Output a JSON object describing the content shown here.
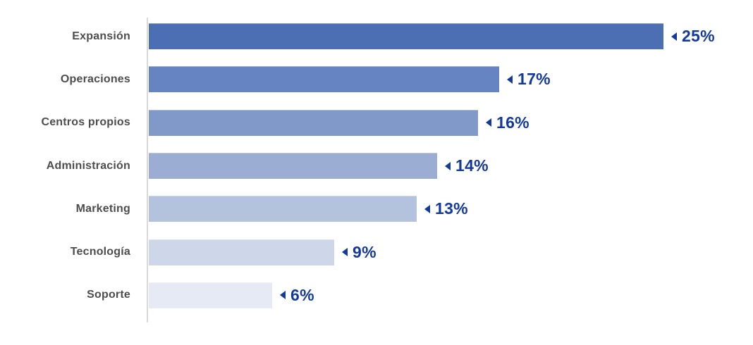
{
  "chart_data": {
    "type": "bar",
    "orientation": "horizontal",
    "title": "",
    "xlabel": "",
    "ylabel": "",
    "categories": [
      "Expansión",
      "Operaciones",
      "Centros propios",
      "Administración",
      "Marketing",
      "Tecnología",
      "Soporte"
    ],
    "values": [
      25,
      17,
      16,
      14,
      13,
      9,
      6
    ],
    "value_labels": [
      "25%",
      "17%",
      "16%",
      "14%",
      "13%",
      "9%",
      "6%"
    ],
    "xlim": [
      0,
      29
    ],
    "grid": false,
    "legend": false,
    "value_marker": "small-left-triangle",
    "bar_colors": [
      "#4c6fb4",
      "#6684c1",
      "#8099c9",
      "#9badd3",
      "#b3c2dd",
      "#cdd7e9",
      "#e5eaf4"
    ],
    "value_label_color": "#13399c",
    "category_label_color": "#4d4d4d",
    "axis_line_color": "#d9d9d9",
    "background_color": "#ffffff"
  }
}
